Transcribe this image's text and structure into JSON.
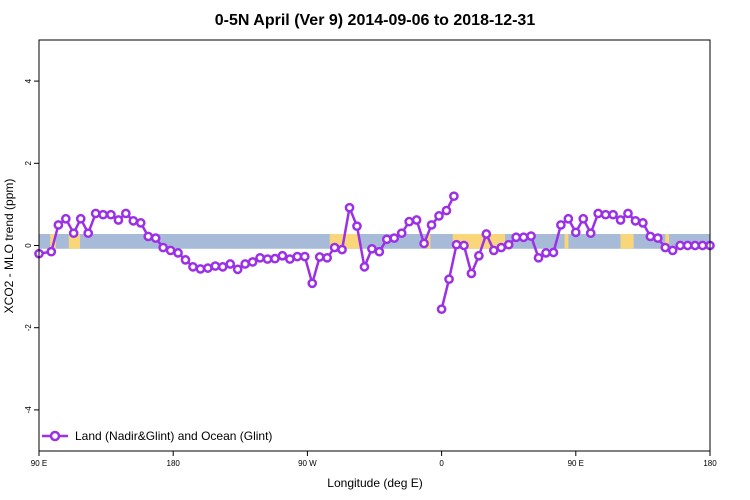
{
  "chart_data": {
    "type": "line",
    "title": "0-5N April (Ver 9)   2014-09-06 to 2018-12-31",
    "xlabel": "Longitude (deg E)",
    "ylabel": "XCO2 - MLO trend (ppm)",
    "xlim": [
      90,
      270
    ],
    "ylim": [
      -5,
      5
    ],
    "x_ticks": [
      {
        "value": 90,
        "label": "90 E"
      },
      {
        "value": 126,
        "label": "180"
      },
      {
        "value": 162,
        "label": "90 W"
      },
      {
        "value": 198,
        "label": "0"
      },
      {
        "value": 234,
        "label": "90 E"
      },
      {
        "value": 270,
        "label": "180"
      }
    ],
    "y_ticks": [
      {
        "value": -4,
        "label": "-4"
      },
      {
        "value": -2,
        "label": "-2"
      },
      {
        "value": 0,
        "label": "0"
      },
      {
        "value": 2,
        "label": "2"
      },
      {
        "value": 4,
        "label": "4"
      }
    ],
    "grid": false,
    "legend_position": "bottom-left",
    "surface_band": {
      "ymin": -0.08,
      "ymax": 0.28,
      "ocean_color": "#A7BBD8",
      "land_color": "#FAD67A",
      "land_segments": [
        [
          93,
          94.5
        ],
        [
          98,
          101
        ],
        [
          168,
          176
        ],
        [
          194,
          195
        ],
        [
          201,
          215
        ],
        [
          231,
          232
        ],
        [
          246,
          249.5
        ],
        [
          258,
          259
        ]
      ]
    },
    "series": [
      {
        "name": "Land (Nadir&Glint) and Ocean (Glint)",
        "color": "#9B30E6",
        "segments": [
          {
            "x": [
              90,
              93.3,
              95.2,
              97.2,
              99.3,
              101.2,
              103.2,
              105.2,
              107.2,
              109.3,
              111.3,
              113.3,
              115.3,
              117.3,
              119.3,
              121.3,
              123.3,
              125.3,
              127.3,
              129.3,
              131.3,
              133.3,
              135.3,
              137.3,
              139.3,
              141.3,
              143.3,
              145.3,
              147.3,
              149.3,
              151.3,
              153.3,
              155.3,
              157.3,
              159.3,
              161.3,
              163.3,
              165.3,
              167.3,
              169.3,
              171.3,
              173.3,
              175.3,
              177.3,
              179.3,
              181.3,
              183.3,
              185.3,
              187.3,
              189.3,
              191.3,
              193.3,
              195.3,
              197.3,
              199.3,
              201.3
            ],
            "y": [
              -0.2,
              -0.15,
              0.5,
              0.65,
              0.3,
              0.65,
              0.3,
              0.78,
              0.75,
              0.75,
              0.62,
              0.78,
              0.6,
              0.55,
              0.22,
              0.18,
              -0.05,
              -0.12,
              -0.18,
              -0.35,
              -0.52,
              -0.57,
              -0.55,
              -0.5,
              -0.52,
              -0.45,
              -0.58,
              -0.45,
              -0.4,
              -0.3,
              -0.33,
              -0.32,
              -0.25,
              -0.33,
              -0.27,
              -0.27,
              -0.92,
              -0.28,
              -0.3,
              -0.05,
              -0.1,
              0.92,
              0.47,
              -0.52,
              -0.08,
              -0.15,
              0.15,
              0.18,
              0.3,
              0.58,
              0.62,
              0.05,
              0.5,
              0.72,
              0.85,
              1.2
            ]
          },
          {
            "x": [
              198,
              200,
              202,
              204,
              206,
              208,
              210,
              212,
              214,
              216,
              218,
              220,
              222,
              224,
              226,
              228,
              230,
              232,
              234,
              236,
              238,
              240,
              242,
              244,
              246,
              248,
              250,
              252,
              254,
              256,
              258,
              260,
              262,
              264,
              266,
              268,
              270
            ],
            "y": [
              -1.55,
              -0.82,
              0.02,
              0.0,
              -0.68,
              -0.25,
              0.28,
              -0.12,
              -0.05,
              0.02,
              0.2,
              0.2,
              0.23,
              -0.3,
              -0.18,
              -0.17,
              0.5,
              0.65,
              0.32,
              0.65,
              0.3,
              0.78,
              0.75,
              0.75,
              0.62,
              0.78,
              0.6,
              0.55,
              0.22,
              0.18,
              -0.05,
              -0.12,
              0,
              0,
              0,
              0,
              0
            ]
          }
        ]
      }
    ]
  }
}
